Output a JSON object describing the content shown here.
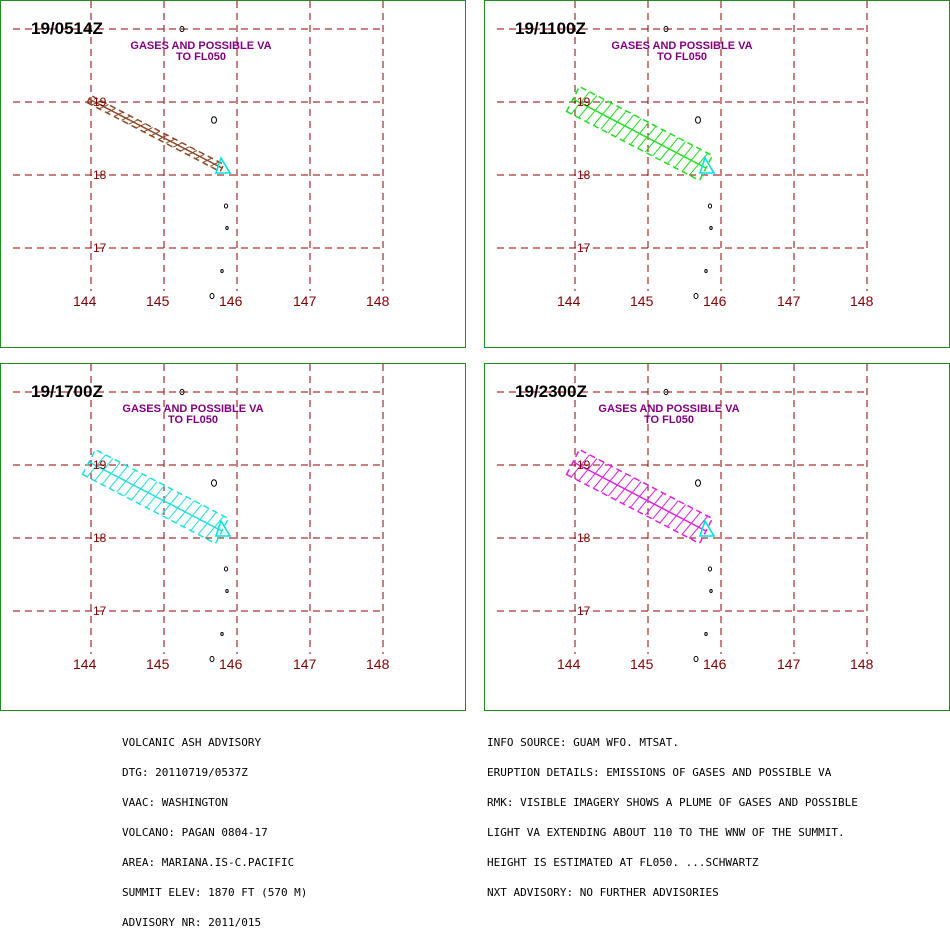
{
  "colors": {
    "frame": "#1e8c1e",
    "grid": "#8b0000",
    "header": "#800080",
    "labels": "#800000",
    "summit_marker": "#00e0e0",
    "islands": "#000000"
  },
  "panels": [
    {
      "dtg": "19/0514Z",
      "header_line1": "GASES AND POSSIBLE VA",
      "header_line2": "TO FL050",
      "plume_color": "#8b4a2b",
      "plume_style": "narrow"
    },
    {
      "dtg": "19/1100Z",
      "header_line1": "GASES AND POSSIBLE VA",
      "header_line2": "TO FL050",
      "plume_color": "#22dd22",
      "plume_style": "wide"
    },
    {
      "dtg": "19/1700Z",
      "header_line1": "GASES AND POSSIBLE VA",
      "header_line2": "TO FL050",
      "plume_color": "#22dddd",
      "plume_style": "wide"
    },
    {
      "dtg": "19/2300Z",
      "header_line1": "GASES AND POSSIBLE VA",
      "header_line2": "TO FL050",
      "plume_color": "#dd22dd",
      "plume_style": "wide"
    }
  ],
  "latitude_labels": [
    "19",
    "18",
    "17"
  ],
  "longitude_labels": [
    "144",
    "145",
    "146",
    "147",
    "148"
  ],
  "advisory_left": [
    "VOLCANIC ASH ADVISORY",
    "DTG: 20110719/0537Z",
    "VAAC: WASHINGTON",
    "VOLCANO: PAGAN 0804-17",
    "AREA: MARIANA.IS-C.PACIFIC",
    "SUMMIT ELEV: 1870 FT (570 M)",
    "ADVISORY NR: 2011/015"
  ],
  "advisory_right": [
    "INFO SOURCE: GUAM WFO. MTSAT.",
    "ERUPTION DETAILS: EMISSIONS OF GASES AND POSSIBLE VA",
    "RMK: VISIBLE IMAGERY SHOWS A PLUME OF GASES AND POSSIBLE",
    "LIGHT VA EXTENDING ABOUT 110 TO THE WNW OF THE SUMMIT.",
    "HEIGHT IS ESTIMATED AT FL050. ...SCHWARTZ",
    "NXT ADVISORY: NO FURTHER ADVISORIES"
  ]
}
